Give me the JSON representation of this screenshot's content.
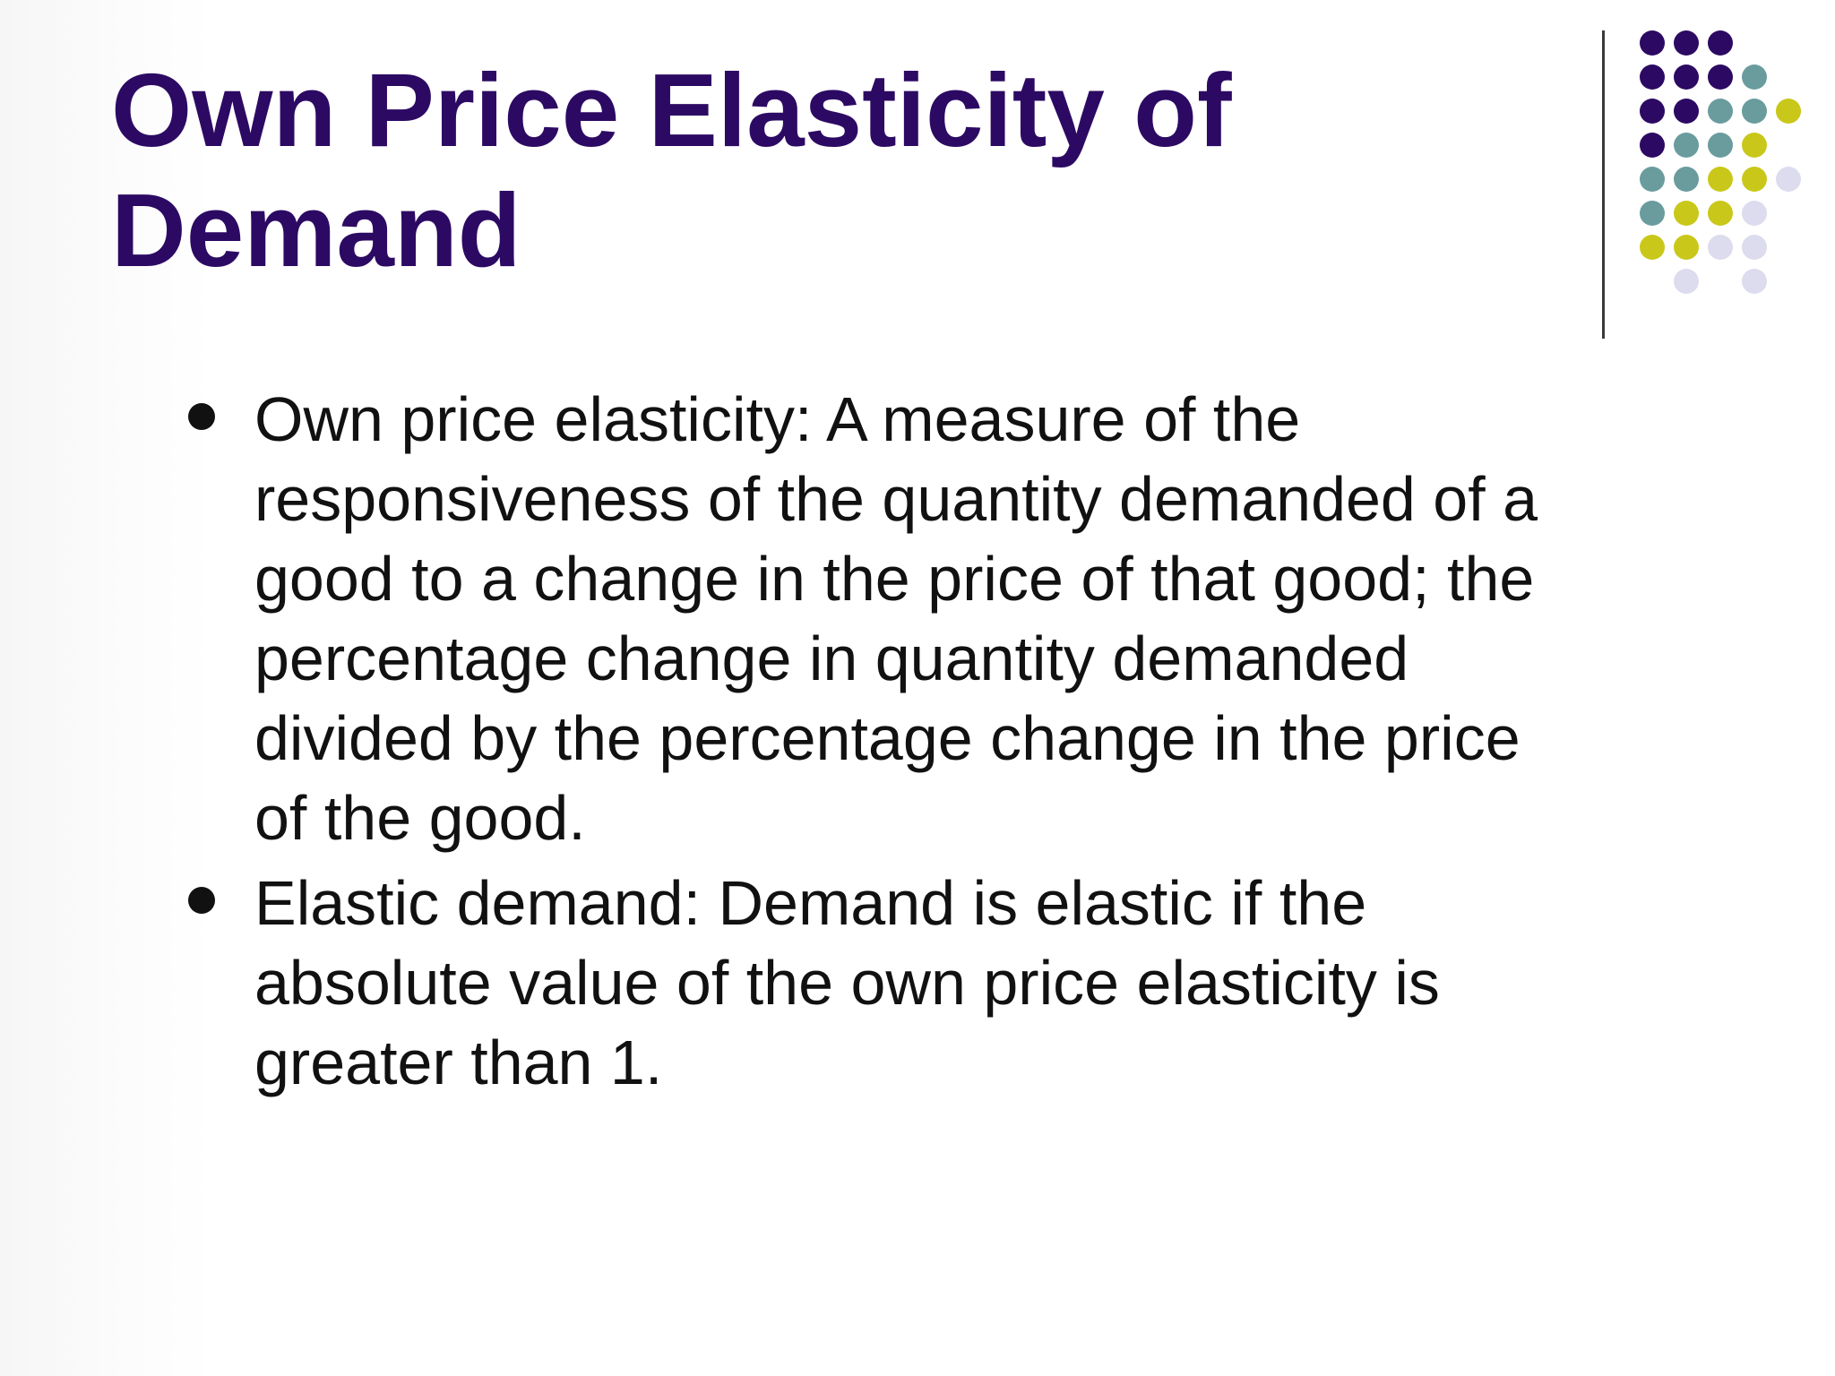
{
  "slide": {
    "title_lines": [
      "Own Price Elasticity of",
      "Demand"
    ],
    "colors": {
      "title": "#2c0a63",
      "body_text": "#111111",
      "divider": "#3a3a3a",
      "dot_purple": "#2c0a63",
      "dot_teal": "#6a9c9e",
      "dot_yellow": "#c9c81a",
      "dot_lavender": "#dcdcee"
    },
    "decoration": "dot-grid",
    "bullets": [
      {
        "lines": [
          "Own price elasticity: A measure of the",
          "responsiveness of the quantity demanded of a",
          "good to a change in the price of that good; the",
          "percentage change in quantity demanded",
          "divided by the percentage change in the price",
          "of the good."
        ]
      },
      {
        "lines": [
          "Elastic demand: Demand is elastic if the",
          "absolute value of the own price elasticity is",
          "greater than 1."
        ]
      }
    ]
  }
}
